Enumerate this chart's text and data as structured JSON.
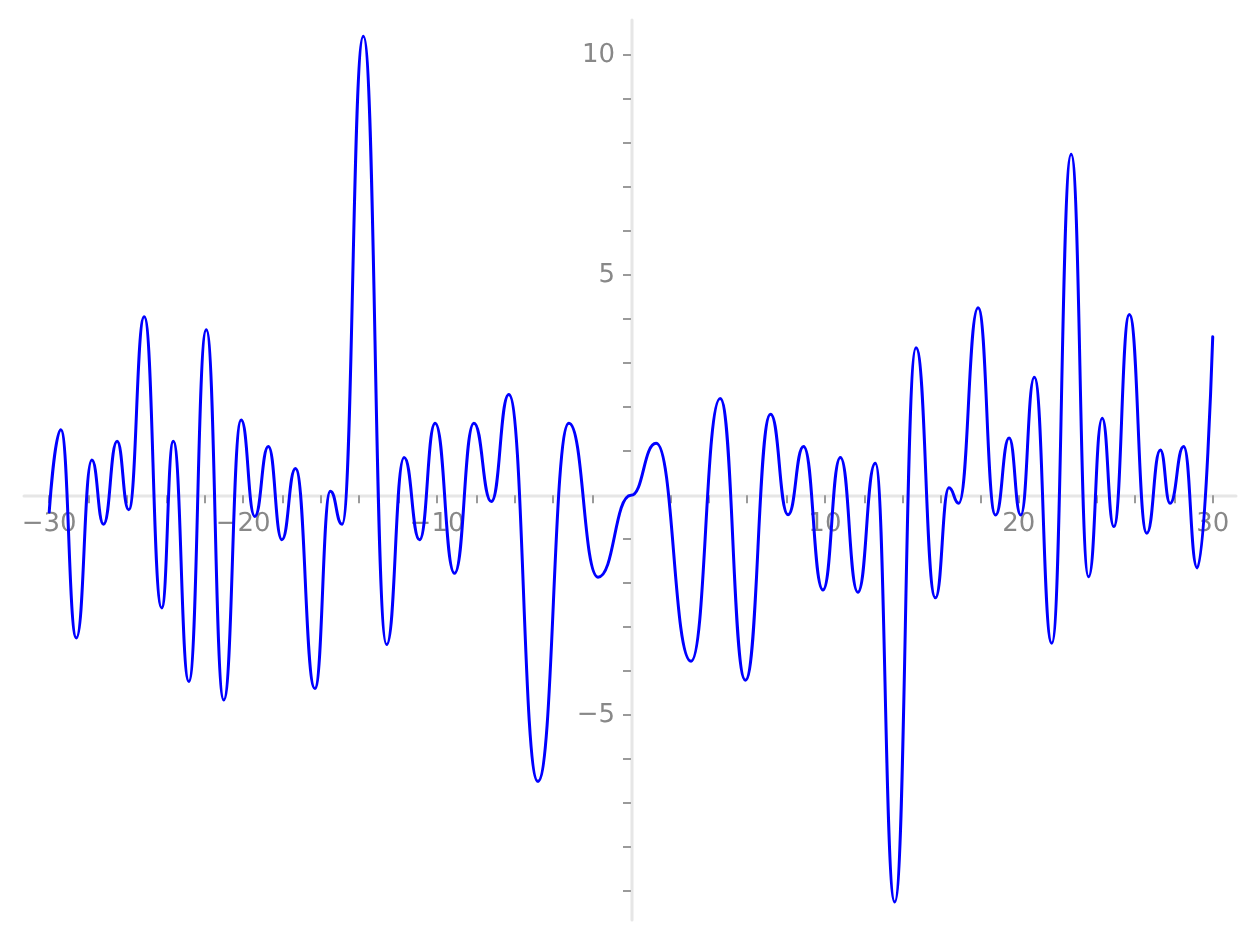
{
  "chart_data": {
    "type": "line",
    "marker": "none",
    "line_style": "solid",
    "grid": false,
    "xlim": [
      -31.3,
      31.2
    ],
    "ylim": [
      -9.65,
      10.8
    ],
    "xticks": [
      {
        "value": -30,
        "label": "−30"
      },
      {
        "value": -28,
        "label": null
      },
      {
        "value": -26,
        "label": null
      },
      {
        "value": -24,
        "label": null
      },
      {
        "value": -22,
        "label": null
      },
      {
        "value": -20,
        "label": "−20"
      },
      {
        "value": -18,
        "label": null
      },
      {
        "value": -16,
        "label": null
      },
      {
        "value": -14,
        "label": null
      },
      {
        "value": -12,
        "label": null
      },
      {
        "value": -10,
        "label": "−10"
      },
      {
        "value": -8,
        "label": null
      },
      {
        "value": -6,
        "label": null
      },
      {
        "value": -4,
        "label": null
      },
      {
        "value": -2,
        "label": null
      },
      {
        "value": 2,
        "label": null
      },
      {
        "value": 4,
        "label": null
      },
      {
        "value": 6,
        "label": null
      },
      {
        "value": 8,
        "label": null
      },
      10,
      {
        "value": 12,
        "label": null
      },
      {
        "value": 14,
        "label": null
      },
      {
        "value": 16,
        "label": null
      },
      {
        "value": 18,
        "label": null
      },
      20,
      {
        "value": 22,
        "label": null
      },
      {
        "value": 24,
        "label": null
      },
      {
        "value": 26,
        "label": null
      },
      {
        "value": 28,
        "label": null
      },
      30
    ],
    "yticks": [
      {
        "value": -9,
        "label": null
      },
      {
        "value": -8,
        "label": null
      },
      {
        "value": -7,
        "label": null
      },
      {
        "value": -6,
        "label": null
      },
      {
        "value": -5,
        "label": "−5"
      },
      {
        "value": -4,
        "label": null
      },
      {
        "value": -3,
        "label": null
      },
      {
        "value": -2,
        "label": null
      },
      {
        "value": -1,
        "label": null
      },
      {
        "value": 1,
        "label": null
      },
      {
        "value": 2,
        "label": null
      },
      {
        "value": 3,
        "label": null
      },
      {
        "value": 4,
        "label": null
      },
      5,
      {
        "value": 6,
        "label": null
      },
      {
        "value": 7,
        "label": null
      },
      {
        "value": 8,
        "label": null
      },
      {
        "value": 9,
        "label": null
      },
      10
    ],
    "series": [
      {
        "color": "#0000ff",
        "x": [
          -30.0,
          -29.4,
          -28.6,
          -27.8,
          -27.2,
          -26.5,
          -25.9,
          -25.1,
          -24.2,
          -23.6,
          -22.8,
          -21.9,
          -21.0,
          -20.1,
          -19.4,
          -18.7,
          -18.0,
          -17.3,
          -16.3,
          -15.5,
          -14.9,
          -13.8,
          -12.6,
          -11.7,
          -10.9,
          -10.1,
          -9.1,
          -8.1,
          -7.2,
          -6.3,
          -4.8,
          -3.2,
          -1.7,
          0,
          1.3,
          3.1,
          4.6,
          5.9,
          7.2,
          8.1,
          8.9,
          9.9,
          10.8,
          11.7,
          12.6,
          13.6,
          14.7,
          15.7,
          16.4,
          16.9,
          17.9,
          18.8,
          19.5,
          20.1,
          20.8,
          21.7,
          22.7,
          23.6,
          24.3,
          24.9,
          25.7,
          26.6,
          27.3,
          27.8,
          28.5,
          29.2,
          30.0
        ],
        "values": [
          -0.38,
          1.49,
          -3.24,
          0.8,
          -0.66,
          1.23,
          -0.33,
          4.06,
          -2.56,
          1.23,
          -4.23,
          3.76,
          -4.65,
          1.71,
          -0.48,
          1.11,
          -1.01,
          0.61,
          -4.39,
          0.09,
          -0.66,
          10.43,
          -3.39,
          0.86,
          -1.01,
          1.64,
          -1.77,
          1.64,
          -0.14,
          2.29,
          -6.5,
          1.64,
          -1.86,
          0,
          1.18,
          -3.77,
          2.2,
          -4.2,
          1.84,
          -0.44,
          1.11,
          -2.15,
          0.86,
          -2.2,
          0.73,
          -9.24,
          3.35,
          -2.33,
          0.17,
          -0.18,
          4.26,
          -0.45,
          1.3,
          -0.45,
          2.68,
          -3.36,
          7.75,
          -1.85,
          1.75,
          -0.71,
          4.11,
          -0.86,
          1.03,
          -0.18,
          1.11,
          -1.65,
          3.6
        ]
      }
    ]
  }
}
